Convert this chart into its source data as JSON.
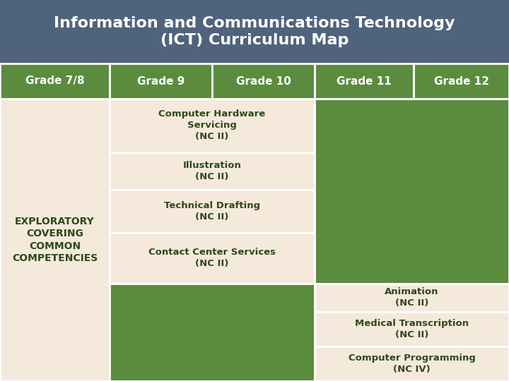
{
  "title_line1": "Information and Communications Technology",
  "title_line2": "(ICT) Curriculum Map",
  "title_bg": "#4f637d",
  "title_text_color": "#ffffff",
  "header_bg": "#5b8c3e",
  "header_text_color": "#ffffff",
  "col_headers": [
    "Grade 7/8",
    "Grade 9",
    "Grade 10",
    "Grade 11",
    "Grade 12"
  ],
  "cell_bg_light": "#f5e9dc",
  "cell_bg_green": "#5b8c3e",
  "cell_text_color": "#2d4a1a",
  "border_color": "#ffffff",
  "grade78_text": "EXPLORATORY\nCOVERING\nCOMMON\nCOMPETENCIES",
  "grade910_cells": [
    "Computer Hardware\nServicing\n(NC II)",
    "Illustration\n(NC II)",
    "Technical Drafting\n(NC II)",
    "Contact Center Services\n(NC II)"
  ],
  "grade11_bottom_cells": [
    "Animation\n(NC II)",
    "Medical Transcription\n(NC II)",
    "Computer Programming\n(NC IV)"
  ]
}
